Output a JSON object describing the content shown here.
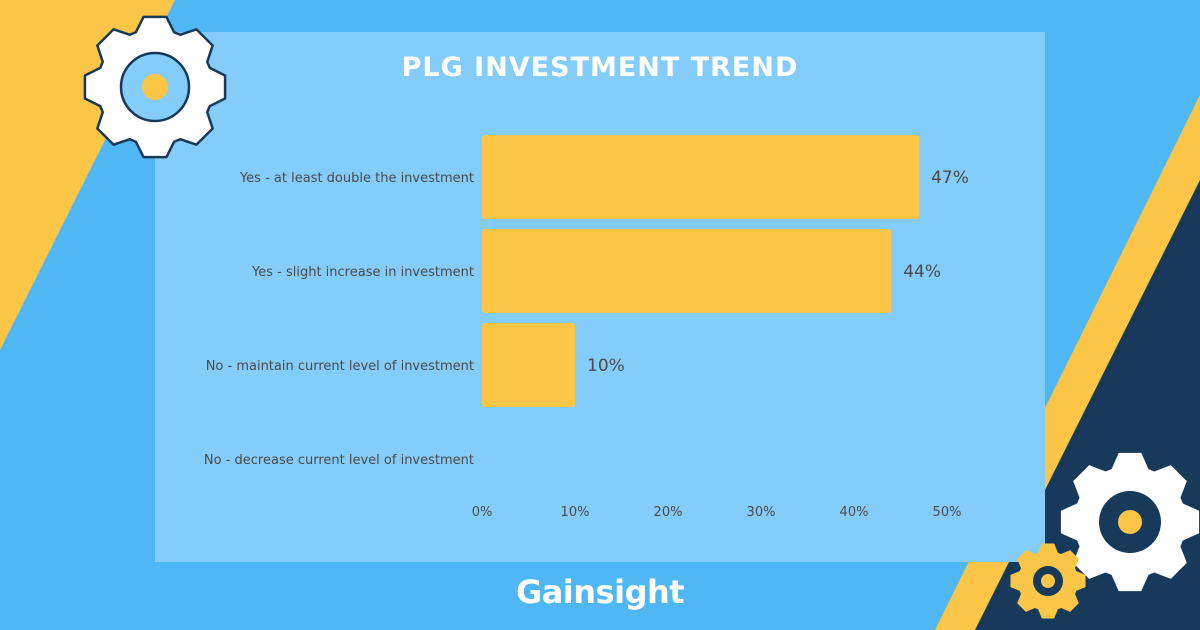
{
  "colors": {
    "background": "#4FB8F4",
    "panel": "#84CDFA",
    "accent_yellow": "#FBC547",
    "navy": "#173A5A",
    "bar": "#FBC547",
    "label_text": "#4A4A4A",
    "white": "#FFFFFF"
  },
  "icons": [
    "gear-icon",
    "gear-icon",
    "gear-icon"
  ],
  "brand": {
    "logo_text": "Gainsight"
  },
  "chart_data": {
    "type": "bar",
    "orientation": "horizontal",
    "title": "PLG INVESTMENT TREND",
    "categories": [
      "Yes - at least double the investment",
      "Yes - slight increase in investment",
      "No - maintain current level of investment",
      "No - decrease current level of investment"
    ],
    "values": [
      47,
      44,
      10,
      0
    ],
    "data_labels": [
      "47%",
      "44%",
      "10%",
      ""
    ],
    "xlim": [
      0,
      50
    ],
    "x_ticks": [
      0,
      10,
      20,
      30,
      40,
      50
    ],
    "x_tick_labels": [
      "0%",
      "10%",
      "20%",
      "30%",
      "40%",
      "50%"
    ],
    "grid": false,
    "legend": "none"
  }
}
